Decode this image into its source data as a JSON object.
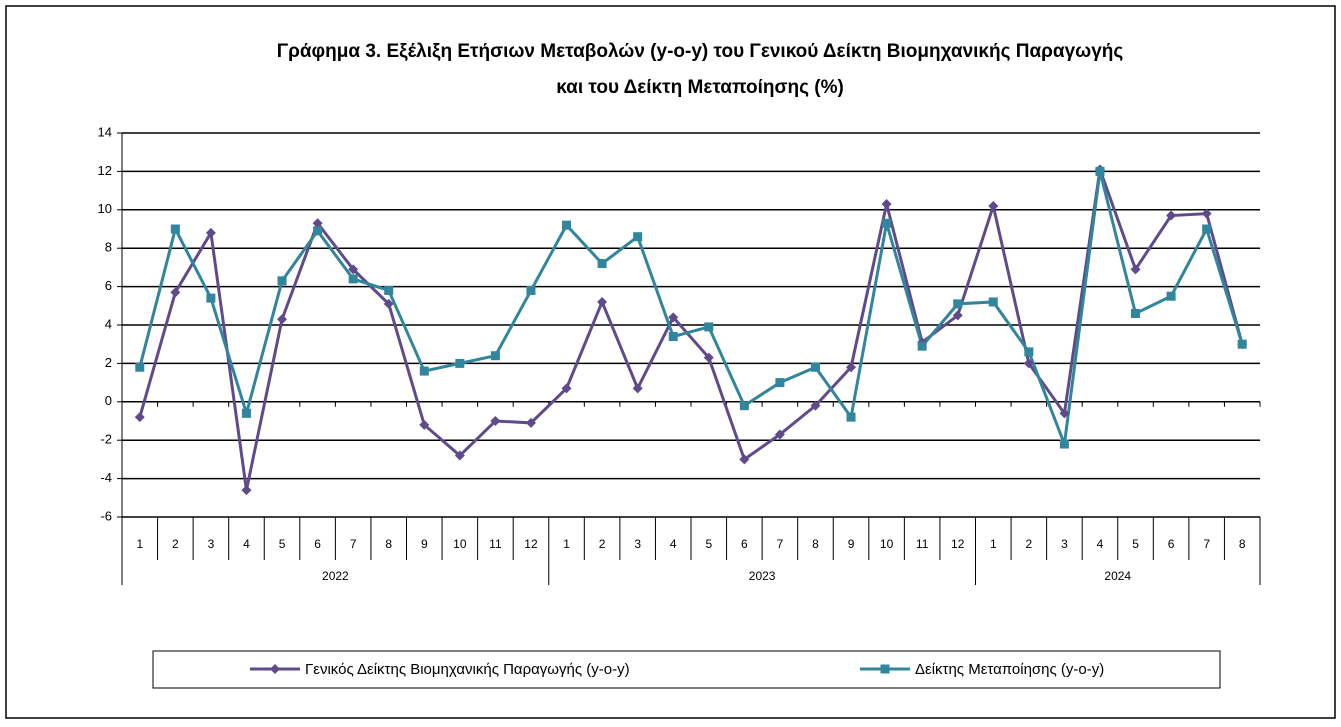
{
  "chart_data": {
    "type": "line",
    "title": [
      "Γράφημα 3. Εξέλιξη Ετήσιων Μεταβολών  (y-o-y) του Γενικού Δείκτη Βιομηχανικής Παραγωγής",
      "και του Δείκτη Μεταποίησης (%)"
    ],
    "categories": [
      "1",
      "2",
      "3",
      "4",
      "5",
      "6",
      "7",
      "8",
      "9",
      "10",
      "11",
      "12",
      "1",
      "2",
      "3",
      "4",
      "5",
      "6",
      "7",
      "8",
      "9",
      "10",
      "11",
      "12",
      "1",
      "2",
      "3",
      "4",
      "5",
      "6",
      "7",
      "8"
    ],
    "groups": [
      "2022",
      "2023",
      "2024"
    ],
    "series": [
      {
        "name": "Γενικός Δείκτης Βιομηχανικής Παραγωγής (y-o-y)",
        "color": "#5f4b8b",
        "marker": "diamond",
        "values": [
          -0.8,
          5.7,
          8.8,
          -4.6,
          4.3,
          9.3,
          6.9,
          5.1,
          -1.2,
          -2.8,
          -1.0,
          -1.1,
          0.7,
          5.2,
          0.7,
          4.4,
          2.3,
          -3.0,
          -1.7,
          -0.2,
          1.8,
          10.3,
          3.1,
          4.5,
          10.2,
          2.0,
          -0.6,
          12.1,
          6.9,
          9.7,
          9.8,
          3.0
        ]
      },
      {
        "name": "Δείκτης Μεταποίησης (y-o-y)",
        "color": "#31859c",
        "marker": "square",
        "values": [
          1.8,
          9.0,
          5.4,
          -0.6,
          6.3,
          8.9,
          6.4,
          5.8,
          1.6,
          2.0,
          2.4,
          5.8,
          9.2,
          7.2,
          8.6,
          3.4,
          3.9,
          -0.2,
          1.0,
          1.8,
          -0.8,
          9.3,
          2.9,
          5.1,
          5.2,
          2.6,
          -2.2,
          12.0,
          4.6,
          5.5,
          9.0,
          3.0
        ]
      }
    ],
    "ylim": [
      -6,
      14
    ],
    "yticks": [
      -6,
      -4,
      -2,
      0,
      2,
      4,
      6,
      8,
      10,
      12,
      14
    ],
    "grid": true
  }
}
